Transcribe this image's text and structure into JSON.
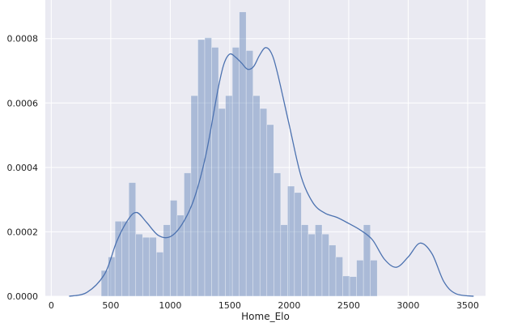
{
  "chart_data": {
    "type": "bar",
    "style": "histogram with kernel density curve",
    "xlabel": "Home_Elo",
    "ylabel": "",
    "xlim": [
      -50,
      3650
    ],
    "ylim": [
      0,
      0.00092
    ],
    "x_ticks": [
      0,
      500,
      1000,
      1500,
      2000,
      2500,
      3000,
      3500
    ],
    "x_tick_labels": [
      "0",
      "500",
      "1000",
      "1500",
      "2000",
      "2500",
      "3000",
      "3500"
    ],
    "y_ticks": [
      0,
      0.0002,
      0.0004,
      0.0006,
      0.0008
    ],
    "y_tick_labels": [
      "0.0000",
      "0.0002",
      "0.0004",
      "0.0006",
      "0.0008"
    ],
    "grid": true,
    "background_color": "#eaeaf2",
    "bar_color": "#4c72b0",
    "bar_opacity": 0.4,
    "line_color": "#4c72b0",
    "bins": {
      "start": 420,
      "width": 58,
      "values": [
        8e-05,
        0.000122,
        0.000233,
        0.000233,
        0.000353,
        0.000193,
        0.000183,
        0.000183,
        0.000137,
        0.000222,
        0.000298,
        0.000252,
        0.000383,
        0.000623,
        0.000797,
        0.000803,
        0.000773,
        0.000583,
        0.000623,
        0.000773,
        0.000883,
        0.000763,
        0.000623,
        0.000583,
        0.000533,
        0.000383,
        0.000222,
        0.000342,
        0.000322,
        0.000222,
        0.000193,
        0.000222,
        0.000193,
        0.000159,
        0.000122,
        6.3e-05,
        6.1e-05,
        0.000112,
        0.000222,
        0.000112
      ]
    },
    "kde": {
      "x": [
        150,
        300,
        450,
        550,
        650,
        720,
        800,
        900,
        1000,
        1100,
        1200,
        1300,
        1400,
        1450,
        1500,
        1550,
        1600,
        1650,
        1700,
        1750,
        1800,
        1850,
        1900,
        2000,
        2100,
        2200,
        2300,
        2400,
        2500,
        2600,
        2700,
        2800,
        2900,
        3000,
        3100,
        3200,
        3300,
        3400,
        3550
      ],
      "y": [
        0,
        1.2e-05,
        7e-05,
        0.00017,
        0.00024,
        0.00026,
        0.00023,
        0.000189,
        0.000185,
        0.000224,
        0.000302,
        0.00044,
        0.00064,
        0.00072,
        0.000752,
        0.000742,
        0.000724,
        0.000705,
        0.000713,
        0.000748,
        0.000772,
        0.000755,
        0.000695,
        0.000532,
        0.000372,
        0.00029,
        0.000258,
        0.000245,
        0.000226,
        0.000205,
        0.000175,
        0.000115,
        9e-05,
        0.000122,
        0.000165,
        0.000132,
        4.5e-05,
        8e-06,
        0
      ]
    }
  }
}
